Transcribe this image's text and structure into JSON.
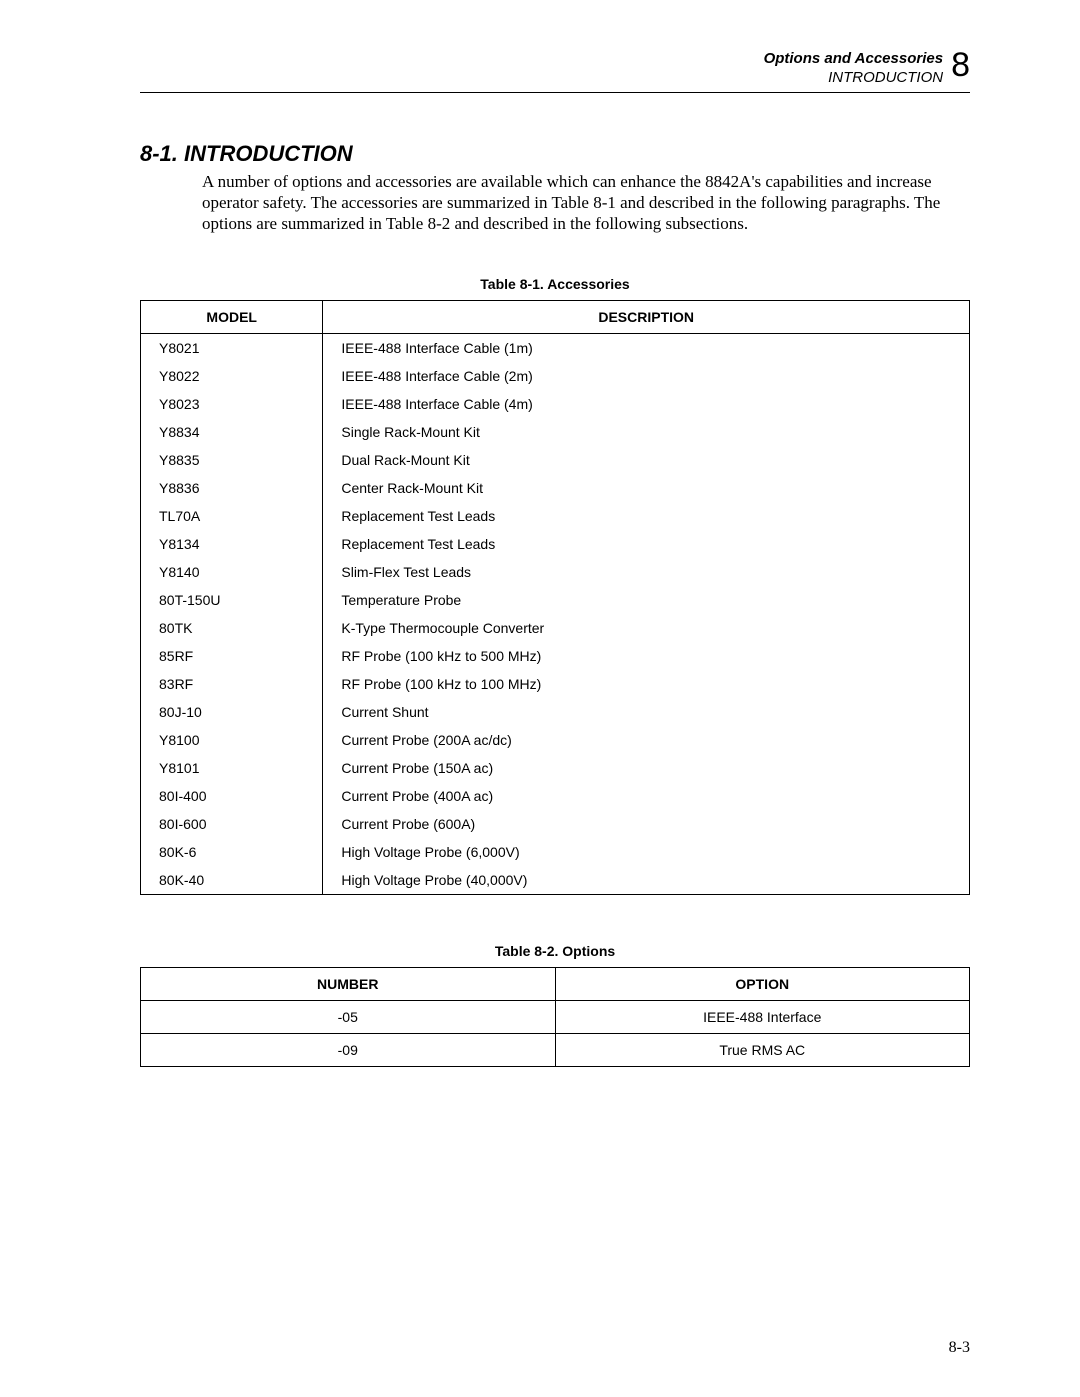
{
  "header": {
    "chapter_title": "Options and Accessories",
    "subtitle": "INTRODUCTION",
    "chapter_number": "8"
  },
  "section": {
    "heading": "8-1.  INTRODUCTION",
    "paragraph": "A number of options and accessories are available which can enhance the 8842A's capabilities and increase operator safety. The accessories are summarized in Table 8-1 and described in the following paragraphs. The options are summarized in Table 8-2 and described in the following subsections."
  },
  "table1": {
    "caption": "Table 8-1. Accessories",
    "columns": [
      "MODEL",
      "DESCRIPTION"
    ],
    "rows": [
      [
        "Y8021",
        "IEEE-488 Interface Cable (1m)"
      ],
      [
        "Y8022",
        "IEEE-488 Interface Cable (2m)"
      ],
      [
        "Y8023",
        "IEEE-488 Interface Cable (4m)"
      ],
      [
        "Y8834",
        "Single Rack-Mount Kit"
      ],
      [
        "Y8835",
        "Dual Rack-Mount Kit"
      ],
      [
        "Y8836",
        "Center Rack-Mount Kit"
      ],
      [
        "TL70A",
        "Replacement Test Leads"
      ],
      [
        "Y8134",
        "Replacement Test Leads"
      ],
      [
        "Y8140",
        "Slim-Flex Test Leads"
      ],
      [
        "80T-150U",
        "Temperature Probe"
      ],
      [
        "80TK",
        "K-Type Thermocouple Converter"
      ],
      [
        "85RF",
        "RF Probe (100 kHz to 500 MHz)"
      ],
      [
        "83RF",
        "RF Probe (100 kHz to 100 MHz)"
      ],
      [
        "80J-10",
        "Current Shunt"
      ],
      [
        "Y8100",
        "Current Probe (200A ac/dc)"
      ],
      [
        "Y8101",
        "Current Probe (150A ac)"
      ],
      [
        "80I-400",
        "Current Probe (400A ac)"
      ],
      [
        "80I-600",
        "Current Probe (600A)"
      ],
      [
        "80K-6",
        "High Voltage Probe (6,000V)"
      ],
      [
        "80K-40",
        "High Voltage Probe (40,000V)"
      ]
    ]
  },
  "table2": {
    "caption": "Table 8-2. Options",
    "columns": [
      "NUMBER",
      "OPTION"
    ],
    "rows": [
      [
        "-05",
        "IEEE-488 Interface"
      ],
      [
        "-09",
        "True RMS AC"
      ]
    ]
  },
  "page_number": "8-3"
}
